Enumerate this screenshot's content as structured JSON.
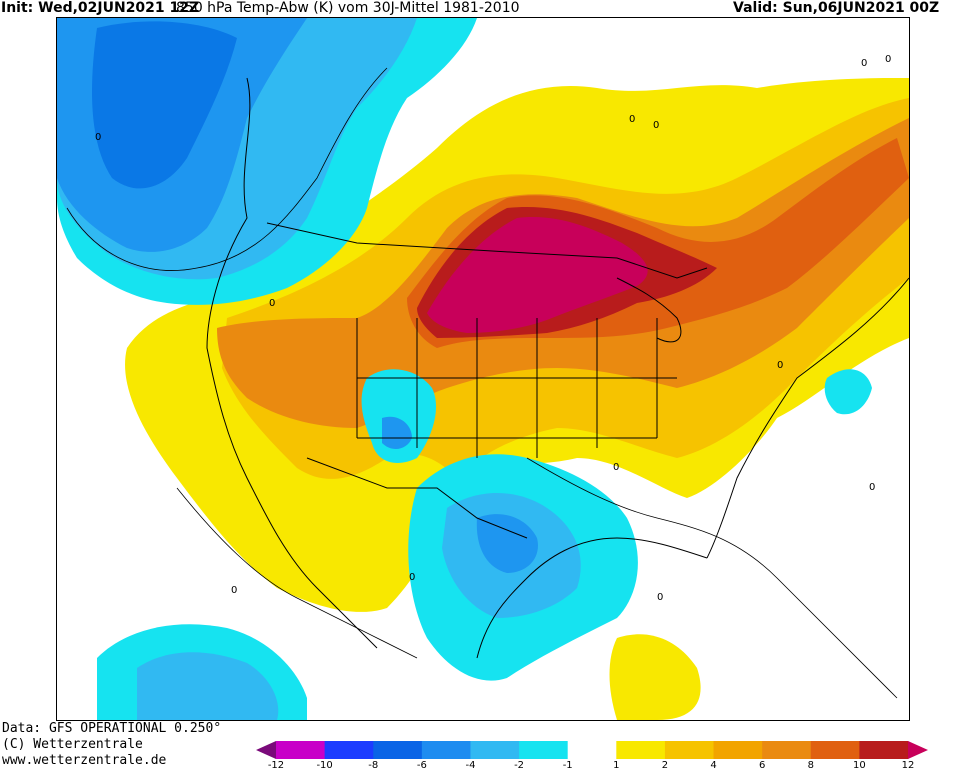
{
  "header": {
    "init": "Init: Wed,02JUN2021 12Z",
    "variable": "850 hPa Temp-Abw (K) vom 30J-Mittel 1981-2010",
    "valid": "Valid: Sun,06JUN2021 00Z"
  },
  "footer": {
    "line1": "Data: GFS OPERATIONAL 0.250°",
    "line2": "(C) Wetterzentrale",
    "line3": "www.wetterzentrale.de"
  },
  "colors": {
    "blue_dark": "#0a78e6",
    "blue_mid": "#1e96f0",
    "blue_light": "#31b9f2",
    "cyan": "#16e3f0",
    "yellow": "#f8e800",
    "gold": "#f6c300",
    "orange_light": "#f2a400",
    "orange": "#ea8a10",
    "orange_dark": "#e06010",
    "red": "#b81c1c",
    "magenta": "#c8005a"
  },
  "contour_labels": [
    "0",
    "0",
    "0",
    "0",
    "0",
    "0",
    "0",
    "0",
    "0",
    "0",
    "0",
    "0"
  ],
  "colorbar": {
    "ticks": [
      "-12",
      "-10",
      "-8",
      "-6",
      "-4",
      "-2",
      "-1",
      "1",
      "2",
      "4",
      "6",
      "8",
      "10",
      "12"
    ],
    "colors": [
      "#7a0a7a",
      "#c800c8",
      "#1c3cff",
      "#0a64e6",
      "#1e8cf0",
      "#31b9f2",
      "#16e3f0",
      "#ffffff",
      "#f8e800",
      "#f6c300",
      "#f2a400",
      "#ea8a10",
      "#e06010",
      "#b81c1c",
      "#c8005a"
    ]
  }
}
